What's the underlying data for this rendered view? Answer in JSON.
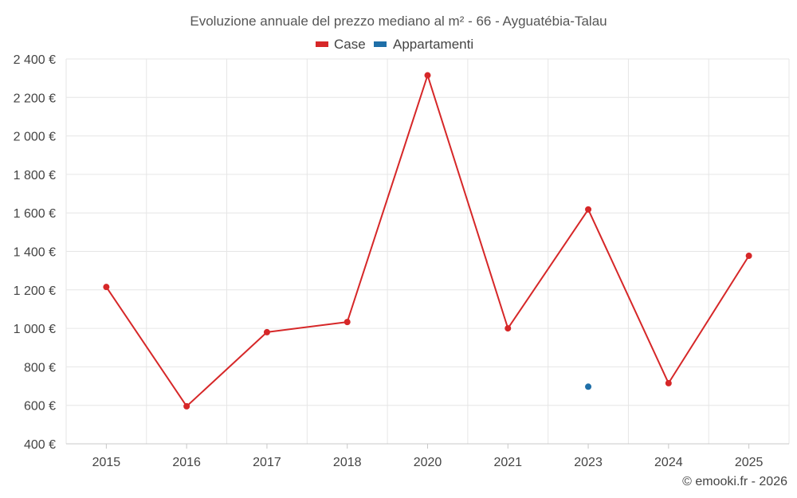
{
  "chart_data": {
    "type": "line",
    "title": "Evoluzione annuale del prezzo mediano al m² - 66 - Ayguatébia-Talau",
    "categories": [
      "2015",
      "2016",
      "2017",
      "2018",
      "2020",
      "2021",
      "2023",
      "2024",
      "2025"
    ],
    "series": [
      {
        "name": "Case",
        "color": "#d62728",
        "values": [
          1215,
          595,
          980,
          1033,
          2315,
          1000,
          1618,
          715,
          1377
        ]
      },
      {
        "name": "Appartamenti",
        "color": "#1f6fa8",
        "values": [
          null,
          null,
          null,
          null,
          null,
          null,
          697,
          null,
          null
        ]
      }
    ],
    "ylim": [
      400,
      2400
    ],
    "yticks": [
      400,
      600,
      800,
      1000,
      1200,
      1400,
      1600,
      1800,
      2000,
      2200,
      2400
    ],
    "ytick_labels": [
      "400 €",
      "600 €",
      "800 €",
      "1 000 €",
      "1 200 €",
      "1 400 €",
      "1 600 €",
      "1 800 €",
      "2 000 €",
      "2 200 €",
      "2 400 €"
    ],
    "xlabel": "",
    "ylabel": "",
    "grid": true,
    "legend_position": "top-center",
    "credit": "© emooki.fr - 2026"
  }
}
